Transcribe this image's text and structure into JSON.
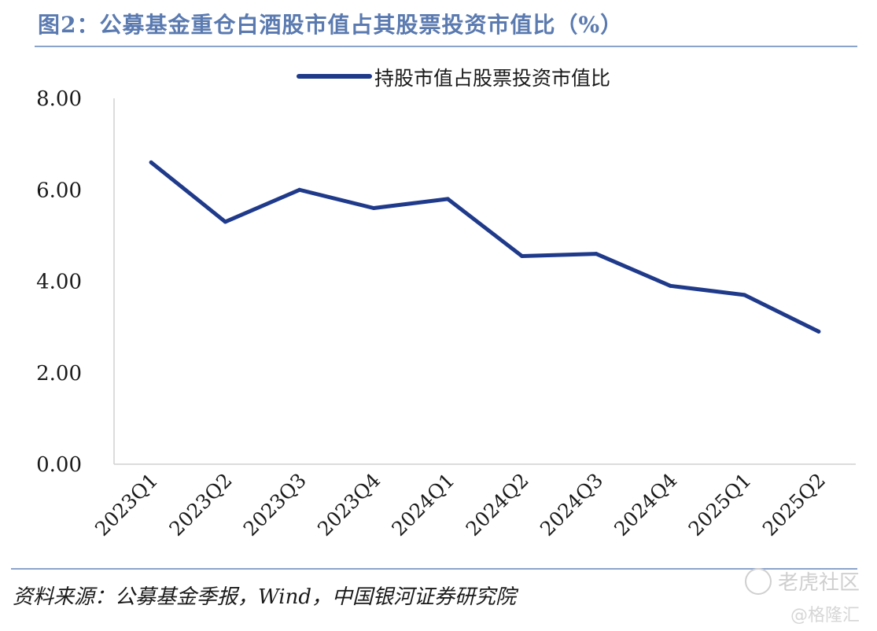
{
  "figure": {
    "title": "图2：公募基金重仓白酒股市值占其股票投资市值比（%）",
    "source": "资料来源：公募基金季报，Wind，中国银河证券研究院",
    "watermark": "老虎社区",
    "watermark_sub": "@格隆汇"
  },
  "chart_data": {
    "type": "line",
    "title": "图2：公募基金重仓白酒股市值占其股票投资市值比（%）",
    "xlabel": "",
    "ylabel": "",
    "categories": [
      "2023Q1",
      "2023Q2",
      "2023Q3",
      "2023Q4",
      "2024Q1",
      "2024Q2",
      "2024Q3",
      "2024Q4",
      "2025Q1",
      "2025Q2"
    ],
    "series": [
      {
        "name": "持股市值占股票投资市值比",
        "values": [
          6.6,
          5.3,
          6.0,
          5.6,
          5.8,
          4.55,
          4.6,
          3.9,
          3.7,
          2.9
        ],
        "color": "#1f3a8a"
      }
    ],
    "yticks": [
      "0.00",
      "2.00",
      "4.00",
      "6.00",
      "8.00"
    ],
    "ylim": [
      0,
      8
    ],
    "grid": false,
    "legend_position": "top"
  }
}
